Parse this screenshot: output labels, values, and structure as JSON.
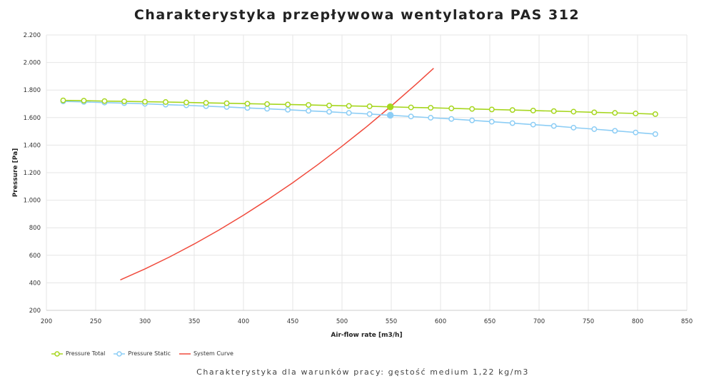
{
  "chart_data": {
    "type": "line",
    "title": "Charakterystyka przepływowa wentylatora PAS 312",
    "subtitle": "Charakterystyka dla warunków pracy: gęstość medium 1,22 kg/m3",
    "xlabel": "Air-flow rate [m3/h]",
    "ylabel": "Pressure [Pa]",
    "xlim": [
      200,
      850
    ],
    "ylim": [
      200,
      2200
    ],
    "xticks": [
      "200",
      "250",
      "300",
      "350",
      "400",
      "450",
      "500",
      "550",
      "600",
      "650",
      "700",
      "750",
      "800",
      "850"
    ],
    "yticks": [
      "200",
      "400",
      "600",
      "800",
      "1.000",
      "1.200",
      "1.400",
      "1.600",
      "1.800",
      "2.000",
      "2.200"
    ],
    "grid": true,
    "legend_position": "bottom-left",
    "series": [
      {
        "name": "Pressure Total",
        "color": "#a6d61e",
        "markers": true,
        "x": [
          217,
          238,
          259,
          279,
          300,
          321,
          342,
          362,
          383,
          404,
          424,
          445,
          466,
          487,
          507,
          528,
          549,
          570,
          590,
          611,
          632,
          652,
          673,
          694,
          715,
          735,
          756,
          777,
          798,
          818
        ],
        "y": [
          1725,
          1723,
          1720,
          1718,
          1715,
          1713,
          1710,
          1707,
          1704,
          1701,
          1698,
          1695,
          1692,
          1688,
          1685,
          1682,
          1678,
          1674,
          1671,
          1667,
          1663,
          1659,
          1655,
          1651,
          1647,
          1643,
          1638,
          1634,
          1630,
          1625
        ],
        "highlight_x": 549
      },
      {
        "name": "Pressure Static",
        "color": "#8ccdf5",
        "markers": true,
        "x": [
          217,
          238,
          259,
          279,
          300,
          321,
          342,
          362,
          383,
          404,
          424,
          445,
          466,
          487,
          507,
          528,
          549,
          570,
          590,
          611,
          632,
          652,
          673,
          694,
          715,
          735,
          756,
          777,
          798,
          818
        ],
        "y": [
          1718,
          1714,
          1709,
          1705,
          1700,
          1694,
          1689,
          1683,
          1677,
          1670,
          1664,
          1657,
          1649,
          1642,
          1634,
          1626,
          1617,
          1608,
          1599,
          1590,
          1580,
          1570,
          1560,
          1549,
          1539,
          1527,
          1516,
          1504,
          1492,
          1480
        ],
        "highlight_x": 549
      },
      {
        "name": "System Curve",
        "color": "#f04a3c",
        "markers": false,
        "x": [
          275,
          300,
          325,
          350,
          375,
          400,
          425,
          450,
          475,
          500,
          525,
          549,
          575,
          593
        ],
        "y": [
          421,
          501,
          588,
          682,
          783,
          891,
          1006,
          1127,
          1256,
          1392,
          1534,
          1678,
          1841,
          1958
        ]
      }
    ]
  }
}
